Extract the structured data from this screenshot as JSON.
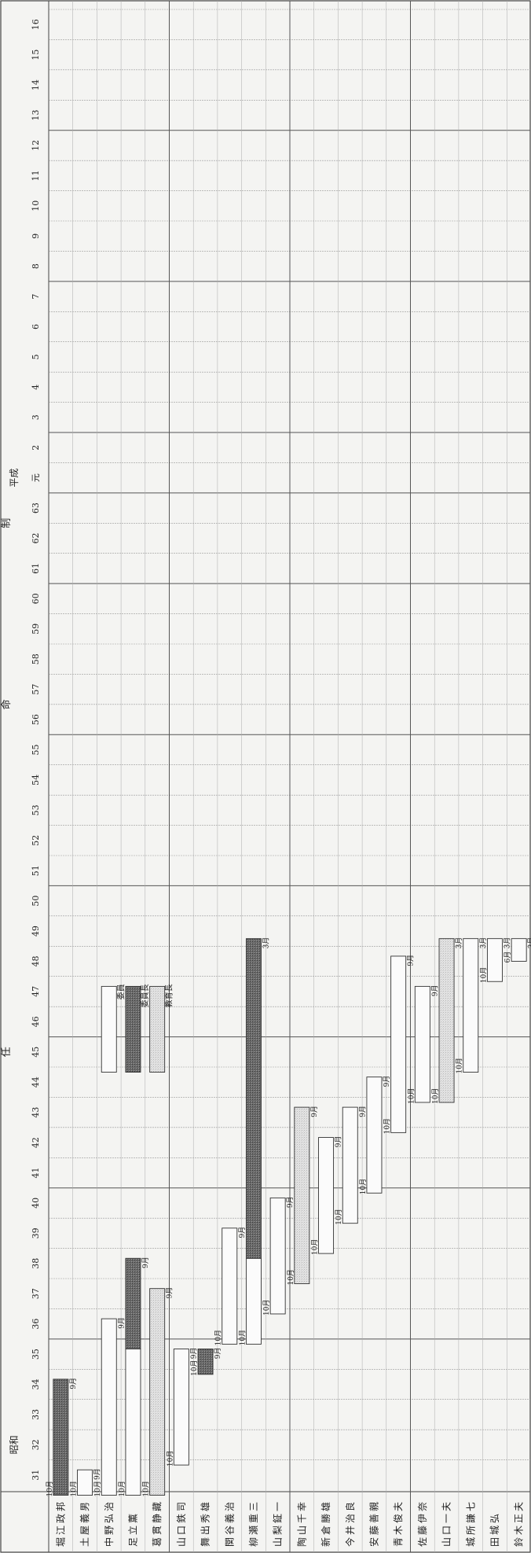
{
  "header": {
    "era_showa": "昭和",
    "era_heisei": "平成",
    "heisei_gan": "元",
    "section_chars": [
      "任",
      "命",
      "制"
    ]
  },
  "years": [
    {
      "label": "31",
      "era": "showa"
    },
    {
      "label": "32",
      "era": "showa"
    },
    {
      "label": "33",
      "era": "showa"
    },
    {
      "label": "34",
      "era": "showa"
    },
    {
      "label": "35",
      "era": "showa"
    },
    {
      "label": "36",
      "era": "showa"
    },
    {
      "label": "37",
      "era": "showa"
    },
    {
      "label": "38",
      "era": "showa"
    },
    {
      "label": "39",
      "era": "showa"
    },
    {
      "label": "40",
      "era": "showa"
    },
    {
      "label": "41",
      "era": "showa"
    },
    {
      "label": "42",
      "era": "showa"
    },
    {
      "label": "43",
      "era": "showa"
    },
    {
      "label": "44",
      "era": "showa"
    },
    {
      "label": "45",
      "era": "showa"
    },
    {
      "label": "46",
      "era": "showa"
    },
    {
      "label": "47",
      "era": "showa"
    },
    {
      "label": "48",
      "era": "showa"
    },
    {
      "label": "49",
      "era": "showa"
    },
    {
      "label": "50",
      "era": "showa"
    },
    {
      "label": "51",
      "era": "showa"
    },
    {
      "label": "52",
      "era": "showa"
    },
    {
      "label": "53",
      "era": "showa"
    },
    {
      "label": "54",
      "era": "showa"
    },
    {
      "label": "55",
      "era": "showa"
    },
    {
      "label": "56",
      "era": "showa"
    },
    {
      "label": "57",
      "era": "showa"
    },
    {
      "label": "58",
      "era": "showa"
    },
    {
      "label": "59",
      "era": "showa"
    },
    {
      "label": "60",
      "era": "showa"
    },
    {
      "label": "61",
      "era": "showa"
    },
    {
      "label": "62",
      "era": "showa"
    },
    {
      "label": "63",
      "era": "showa"
    },
    {
      "label": "元",
      "era": "heisei"
    },
    {
      "label": "2",
      "era": "heisei"
    },
    {
      "label": "3",
      "era": "heisei"
    },
    {
      "label": "4",
      "era": "heisei"
    },
    {
      "label": "5",
      "era": "heisei"
    },
    {
      "label": "6",
      "era": "heisei"
    },
    {
      "label": "7",
      "era": "heisei"
    },
    {
      "label": "8",
      "era": "heisei"
    },
    {
      "label": "9",
      "era": "heisei"
    },
    {
      "label": "10",
      "era": "heisei"
    },
    {
      "label": "11",
      "era": "heisei"
    },
    {
      "label": "12",
      "era": "heisei"
    },
    {
      "label": "13",
      "era": "heisei"
    },
    {
      "label": "14",
      "era": "heisei"
    },
    {
      "label": "15",
      "era": "heisei"
    },
    {
      "label": "16",
      "era": "heisei"
    }
  ],
  "legend": {
    "member": "委員",
    "chair": "委員長",
    "superintendent": "教育長"
  },
  "people": [
    {
      "name": "堀江政邦",
      "bars": [
        {
          "role": "chair",
          "start": 30.83,
          "end": 34.67,
          "start_label": "10月",
          "end_label": "9月"
        }
      ]
    },
    {
      "name": "土屋義男",
      "bars": [
        {
          "role": "member",
          "start": 30.83,
          "end": 31.67,
          "start_label": "10月",
          "end_label": "9月"
        }
      ]
    },
    {
      "name": "中野弘治",
      "bars": [
        {
          "role": "member",
          "start": 30.83,
          "end": 36.67,
          "start_label": "10月",
          "end_label": "9月"
        }
      ]
    },
    {
      "name": "足立薫",
      "bars": [
        {
          "role": "member",
          "start": 30.83,
          "end": 35.67,
          "start_label": "10月",
          "end_label": ""
        },
        {
          "role": "chair",
          "start": 35.67,
          "end": 38.67,
          "start_label": "",
          "end_label": "9月"
        }
      ]
    },
    {
      "name": "葛貫静藏",
      "bars": [
        {
          "role": "superintendent",
          "start": 30.83,
          "end": 37.67,
          "start_label": "10月",
          "end_label": "9月"
        }
      ]
    },
    {
      "name": "山口鉄司",
      "bars": [
        {
          "role": "member",
          "start": 31.83,
          "end": 35.67,
          "start_label": "10月",
          "end_label": "9月"
        }
      ]
    },
    {
      "name": "舞出秀雄",
      "bars": [
        {
          "role": "chair",
          "start": 34.83,
          "end": 35.67,
          "start_label": "10月",
          "end_label": "9月"
        }
      ]
    },
    {
      "name": "関谷義治",
      "bars": [
        {
          "role": "member",
          "start": 35.83,
          "end": 39.67,
          "start_label": "10月",
          "end_label": "9月"
        }
      ]
    },
    {
      "name": "柳瀬重三",
      "bars": [
        {
          "role": "member",
          "start": 35.83,
          "end": 38.67,
          "start_label": "10月",
          "end_label": ""
        },
        {
          "role": "chair",
          "start": 38.67,
          "end": 49.25,
          "start_label": "",
          "end_label": "3月"
        }
      ]
    },
    {
      "name": "山梨鉦一",
      "bars": [
        {
          "role": "member",
          "start": 36.83,
          "end": 40.67,
          "start_label": "10月",
          "end_label": "9月"
        }
      ]
    },
    {
      "name": "陶山千幸",
      "bars": [
        {
          "role": "superintendent",
          "start": 37.83,
          "end": 43.67,
          "start_label": "10月",
          "end_label": "9月"
        }
      ]
    },
    {
      "name": "新倉勝雄",
      "bars": [
        {
          "role": "member",
          "start": 38.83,
          "end": 42.67,
          "start_label": "10月",
          "end_label": "9月"
        }
      ]
    },
    {
      "name": "今井治良",
      "bars": [
        {
          "role": "member",
          "start": 39.83,
          "end": 43.67,
          "start_label": "10月",
          "end_label": "9月"
        }
      ]
    },
    {
      "name": "安藤善親",
      "bars": [
        {
          "role": "member",
          "start": 40.83,
          "end": 44.67,
          "start_label": "10月",
          "end_label": "9月"
        }
      ]
    },
    {
      "name": "青木俊夫",
      "bars": [
        {
          "role": "member",
          "start": 42.83,
          "end": 48.67,
          "start_label": "10月",
          "end_label": "9月"
        }
      ]
    },
    {
      "name": "佐藤伊奈",
      "bars": [
        {
          "role": "member",
          "start": 43.83,
          "end": 47.67,
          "start_label": "10月",
          "end_label": "9月"
        }
      ]
    },
    {
      "name": "山口一夫",
      "bars": [
        {
          "role": "superintendent",
          "start": 43.83,
          "end": 49.25,
          "start_label": "10月",
          "end_label": "3月"
        }
      ]
    },
    {
      "name": "城所謙七",
      "bars": [
        {
          "role": "member",
          "start": 44.83,
          "end": 49.25,
          "start_label": "10月",
          "end_label": "3月"
        }
      ]
    },
    {
      "name": "田城弘",
      "bars": [
        {
          "role": "member",
          "start": 47.83,
          "end": 49.25,
          "start_label": "10月",
          "end_label": "3月"
        }
      ]
    },
    {
      "name": "鈴木正夫",
      "bars": [
        {
          "role": "member",
          "start": 48.5,
          "end": 49.25,
          "start_label": "6月",
          "end_label": "3月"
        }
      ]
    }
  ]
}
